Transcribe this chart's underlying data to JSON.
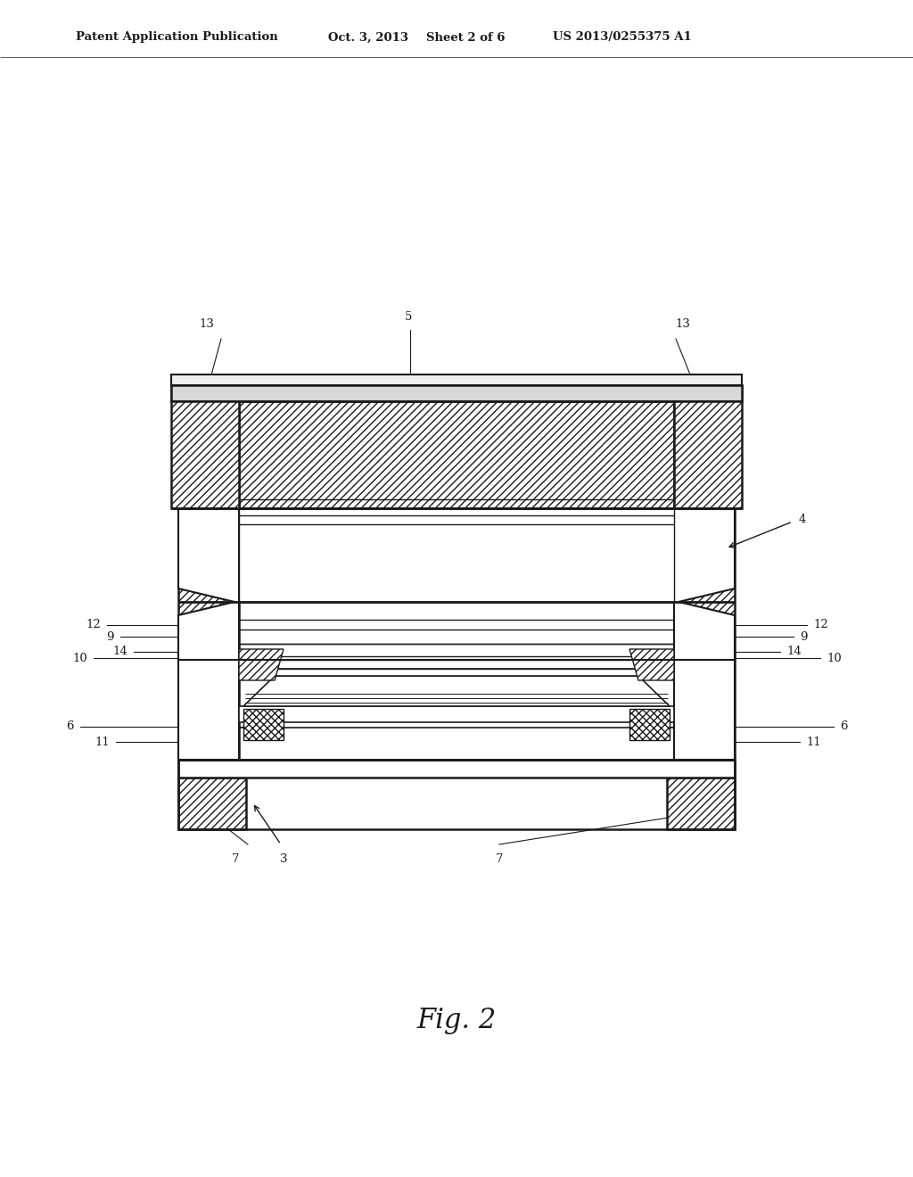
{
  "bg_color": "#ffffff",
  "lc": "#1a1a1a",
  "header_text": "Patent Application Publication",
  "header_date": "Oct. 3, 2013",
  "header_sheet": "Sheet 2 of 6",
  "header_patent": "US 2013/0255375 A1",
  "fig_label": "Fig. 2",
  "fig_label_size": 22
}
